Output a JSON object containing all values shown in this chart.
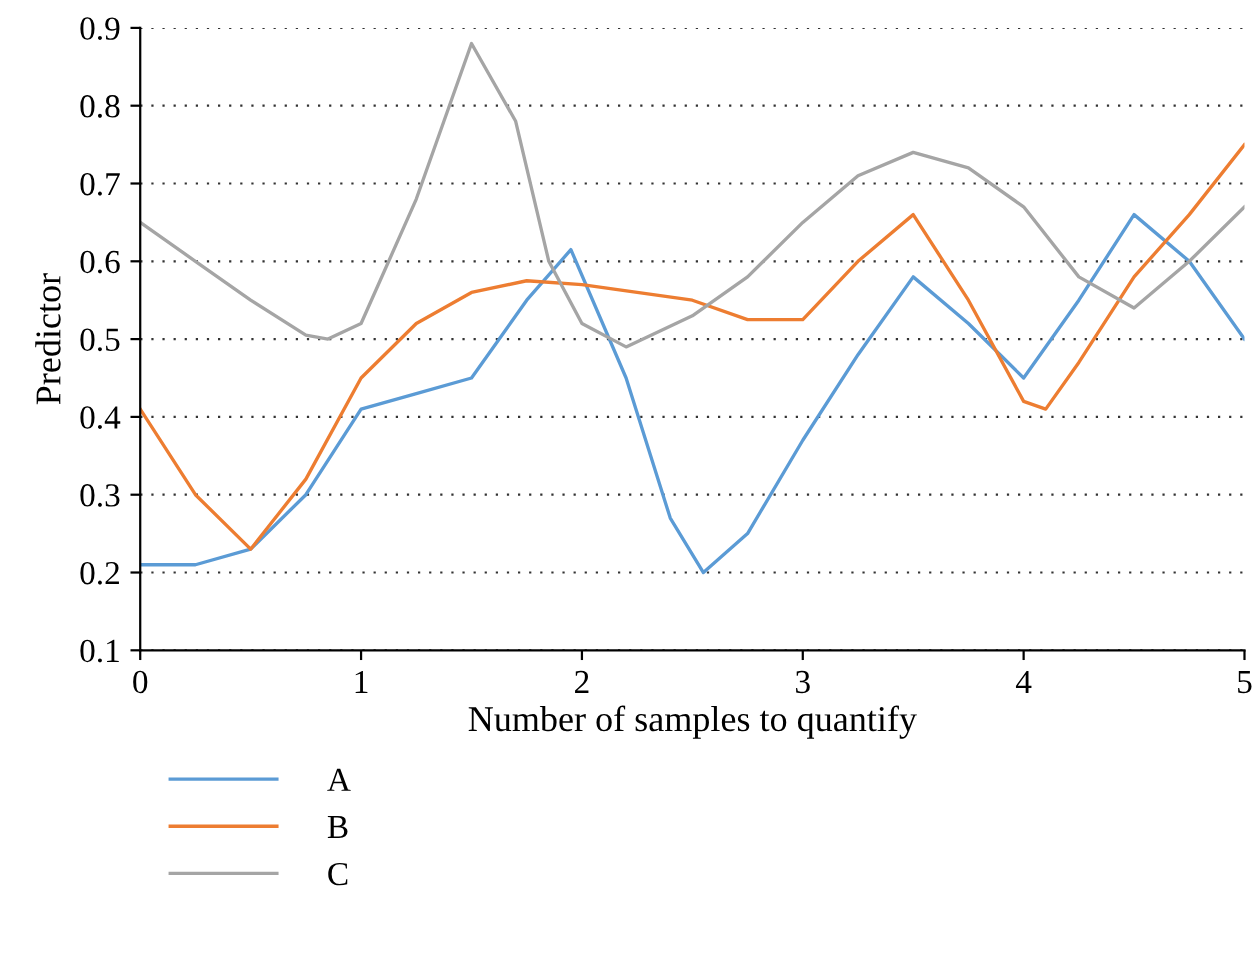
{
  "chart_data": {
    "type": "line",
    "xlabel": "Number of samples to quantify",
    "ylabel": "Predictor",
    "xlim": [
      0,
      5
    ],
    "xticks": [
      0,
      1,
      2,
      3,
      4,
      5
    ],
    "ylim": [
      0.1,
      0.9
    ],
    "yticks": [
      0.1,
      0.2,
      0.3,
      0.4,
      0.5,
      0.6,
      0.7,
      0.8,
      0.9
    ],
    "grid": "y",
    "legend": "bottom left",
    "line_style": "solid",
    "marker": "none",
    "series": [
      {
        "name": "A",
        "color": "#5b9bd5",
        "x": [
          0,
          0.25,
          0.5,
          0.75,
          1.0,
          1.25,
          1.5,
          1.75,
          1.95,
          2.2,
          2.4,
          2.55,
          2.75,
          3.0,
          3.25,
          3.5,
          3.75,
          4.0,
          4.25,
          4.5,
          4.75,
          5.0
        ],
        "values": [
          0.21,
          0.21,
          0.23,
          0.3,
          0.41,
          0.43,
          0.45,
          0.55,
          0.615,
          0.45,
          0.27,
          0.2,
          0.25,
          0.37,
          0.48,
          0.58,
          0.52,
          0.45,
          0.55,
          0.66,
          0.6,
          0.5
        ]
      },
      {
        "name": "B",
        "color": "#ed7d31",
        "x": [
          0,
          0.25,
          0.5,
          0.75,
          1.0,
          1.25,
          1.5,
          1.75,
          2.0,
          2.25,
          2.5,
          2.75,
          3.0,
          3.25,
          3.5,
          3.75,
          4.0,
          4.1,
          4.25,
          4.5,
          4.75,
          5.0
        ],
        "values": [
          0.41,
          0.3,
          0.23,
          0.32,
          0.45,
          0.52,
          0.56,
          0.575,
          0.57,
          0.56,
          0.55,
          0.525,
          0.525,
          0.6,
          0.66,
          0.55,
          0.42,
          0.41,
          0.47,
          0.58,
          0.66,
          0.75
        ]
      },
      {
        "name": "C",
        "color": "#a5a5a5",
        "x": [
          0,
          0.25,
          0.5,
          0.75,
          0.85,
          1.0,
          1.25,
          1.5,
          1.7,
          1.85,
          2.0,
          2.2,
          2.5,
          2.75,
          3.0,
          3.25,
          3.5,
          3.75,
          4.0,
          4.25,
          4.5,
          4.75,
          5.0
        ],
        "values": [
          0.65,
          0.6,
          0.55,
          0.505,
          0.5,
          0.52,
          0.68,
          0.88,
          0.78,
          0.6,
          0.52,
          0.49,
          0.53,
          0.58,
          0.65,
          0.71,
          0.74,
          0.72,
          0.67,
          0.58,
          0.54,
          0.6,
          0.67
        ]
      }
    ]
  }
}
